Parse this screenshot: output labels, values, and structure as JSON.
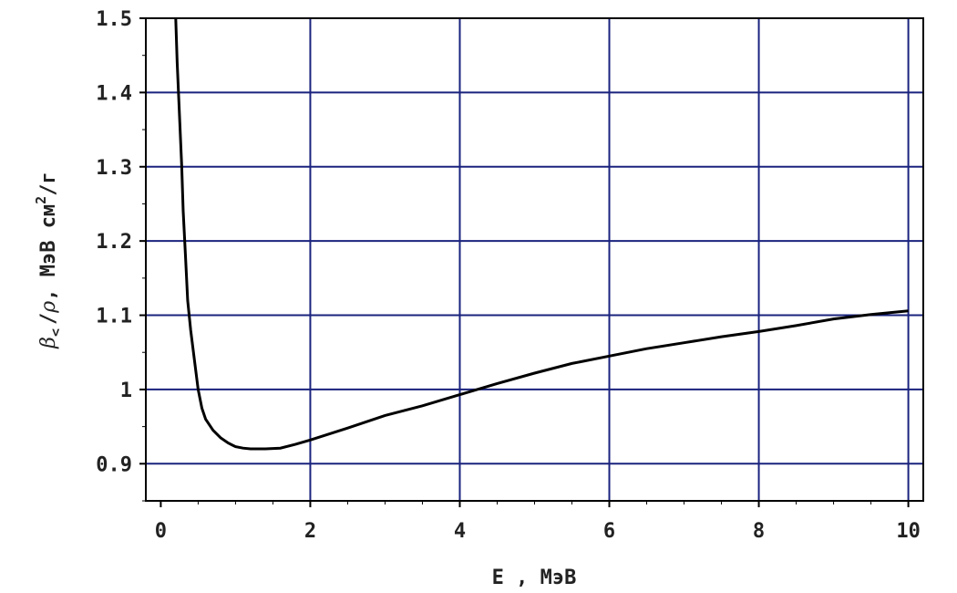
{
  "chart_data": {
    "type": "line",
    "title": "",
    "xlabel": "E , МэВ",
    "ylabel_parts": {
      "beta": "β",
      "sub": "<",
      "slash1": "/",
      "rho": "ρ",
      "units": ", МэВ  см",
      "sup": "2",
      "tail": "/г"
    },
    "xlim": [
      -0.2,
      10.2
    ],
    "ylim": [
      0.85,
      1.5
    ],
    "xticks": [
      0,
      2,
      4,
      6,
      8,
      10
    ],
    "xtick_labels": [
      "0",
      "2",
      "4",
      "6",
      "8",
      "10"
    ],
    "yticks": [
      0.9,
      1.0,
      1.1,
      1.2,
      1.3,
      1.4,
      1.5
    ],
    "ytick_labels": [
      "0.9",
      "1",
      "1.1",
      "1.2",
      "1.3",
      "1.4",
      "1.5"
    ],
    "grid": true,
    "grid_color": "#1a237e",
    "line_color": "#000000",
    "series": [
      {
        "x": [
          0.2,
          0.22,
          0.25,
          0.28,
          0.3,
          0.33,
          0.36,
          0.4,
          0.45,
          0.5,
          0.55,
          0.6,
          0.7,
          0.8,
          0.9,
          1.0,
          1.1,
          1.2,
          1.4,
          1.6,
          1.8,
          2.0,
          2.5,
          3.0,
          3.5,
          4.0,
          4.5,
          5.0,
          5.5,
          6.0,
          6.5,
          7.0,
          7.5,
          8.0,
          8.5,
          9.0,
          9.5,
          10.0
        ],
        "y": [
          1.5,
          1.44,
          1.37,
          1.3,
          1.24,
          1.18,
          1.12,
          1.08,
          1.04,
          1.0,
          0.975,
          0.96,
          0.945,
          0.935,
          0.928,
          0.923,
          0.921,
          0.92,
          0.92,
          0.921,
          0.926,
          0.932,
          0.948,
          0.965,
          0.978,
          0.993,
          1.008,
          1.022,
          1.035,
          1.045,
          1.055,
          1.063,
          1.071,
          1.078,
          1.086,
          1.095,
          1.101,
          1.106
        ]
      }
    ]
  }
}
